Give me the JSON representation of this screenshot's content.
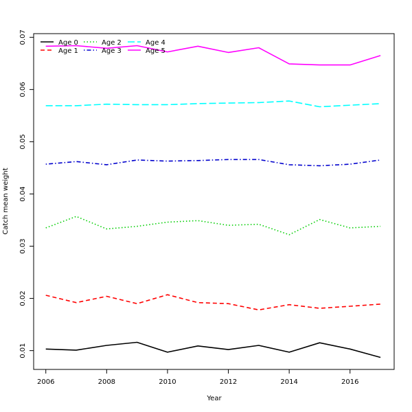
{
  "chart_data": {
    "type": "line",
    "title": "",
    "xlabel": "Year",
    "ylabel": "Catch mean weight",
    "xlim": [
      2005.6,
      2017.45
    ],
    "ylim": [
      0.0064,
      0.0707
    ],
    "x_ticks": [
      2006,
      2008,
      2010,
      2012,
      2014,
      2016
    ],
    "y_ticks": [
      0.01,
      0.02,
      0.03,
      0.04,
      0.05,
      0.06,
      0.07
    ],
    "x_tick_labels": [
      "2006",
      "2008",
      "2010",
      "2012",
      "2014",
      "2016"
    ],
    "y_tick_labels": [
      "0.01",
      "0.02",
      "0.03",
      "0.04",
      "0.05",
      "0.06",
      "0.07"
    ],
    "grid": false,
    "legend_position": "top-left",
    "x": [
      2006,
      2007,
      2008,
      2009,
      2010,
      2011,
      2012,
      2013,
      2014,
      2015,
      2016,
      2017
    ],
    "series": [
      {
        "name": "Age 0",
        "color": "#000000",
        "dash": "solid",
        "values": [
          0.0103,
          0.0101,
          0.011,
          0.0116,
          0.0097,
          0.0109,
          0.0102,
          0.011,
          0.0097,
          0.0115,
          0.0103,
          0.0087
        ]
      },
      {
        "name": "Age 1",
        "color": "#ff0000",
        "dash": "dashed",
        "values": [
          0.0206,
          0.0192,
          0.0204,
          0.019,
          0.0207,
          0.0192,
          0.019,
          0.0178,
          0.0188,
          0.0181,
          0.0185,
          0.0189
        ]
      },
      {
        "name": "Age 2",
        "color": "#00cd00",
        "dash": "dotted",
        "values": [
          0.0335,
          0.0357,
          0.0333,
          0.0338,
          0.0346,
          0.0349,
          0.034,
          0.0342,
          0.0322,
          0.0351,
          0.0335,
          0.0338
        ]
      },
      {
        "name": "Age 3",
        "color": "#0000cd",
        "dash": "dotdash",
        "values": [
          0.0457,
          0.0462,
          0.0456,
          0.0465,
          0.0463,
          0.0464,
          0.0466,
          0.0466,
          0.0456,
          0.0454,
          0.0457,
          0.0465
        ]
      },
      {
        "name": "Age 4",
        "color": "#00ffff",
        "dash": "longdash",
        "values": [
          0.0569,
          0.0569,
          0.0572,
          0.0571,
          0.0571,
          0.0573,
          0.0574,
          0.0575,
          0.0578,
          0.0567,
          0.057,
          0.0573
        ]
      },
      {
        "name": "Age 5",
        "color": "#ff00ff",
        "dash": "solid",
        "values": [
          0.0683,
          0.0684,
          0.0679,
          0.0684,
          0.0672,
          0.0683,
          0.0671,
          0.068,
          0.0649,
          0.0647,
          0.0647,
          0.0665
        ]
      }
    ]
  }
}
